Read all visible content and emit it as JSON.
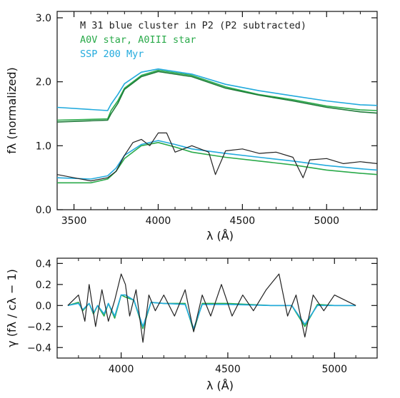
{
  "chart_data": [
    {
      "type": "line",
      "xlim": [
        3400,
        5300
      ],
      "ylim": [
        0,
        3.1
      ],
      "xticks": [
        3500,
        4000,
        4500,
        5000
      ],
      "yticks": [
        0.0,
        1.0,
        2.0,
        3.0
      ],
      "xtick_labels": [
        "3500",
        "4000",
        "4500",
        "5000"
      ],
      "ytick_labels": [
        "0.0",
        "1.0",
        "2.0",
        "3.0"
      ],
      "xlabel": "λ (Å)",
      "ylabel": "fλ (normalized)",
      "grid": false,
      "legend_position": "top-center",
      "legend": [
        {
          "label": "M 31 blue cluster in P2 (P2 subtracted)",
          "color": "#222222"
        },
        {
          "label": "A0V star, A0III star",
          "color": "#2aaa4a"
        },
        {
          "label": "SSP 200 Myr",
          "color": "#22aadd"
        }
      ],
      "series": [
        {
          "name": "A0V star, A0III star",
          "color": "#2aaa4a",
          "group": "upper",
          "x": [
            3400,
            3700,
            3720,
            3760,
            3800,
            3900,
            4000,
            4200,
            4400,
            4600,
            4800,
            5000,
            5200,
            5300
          ],
          "values": [
            1.4,
            1.42,
            1.55,
            1.7,
            1.9,
            2.1,
            2.18,
            2.1,
            1.92,
            1.8,
            1.72,
            1.62,
            1.56,
            1.55
          ]
        },
        {
          "name": "A0V star, A0III star",
          "color": "#1f7a3a",
          "group": "upper",
          "x": [
            3400,
            3700,
            3720,
            3760,
            3800,
            3900,
            4000,
            4200,
            4400,
            4600,
            4800,
            5000,
            5200,
            5300
          ],
          "values": [
            1.37,
            1.4,
            1.5,
            1.66,
            1.88,
            2.08,
            2.16,
            2.08,
            1.9,
            1.79,
            1.7,
            1.6,
            1.53,
            1.51
          ]
        },
        {
          "name": "SSP 200 Myr",
          "color": "#22aadd",
          "group": "upper",
          "x": [
            3400,
            3700,
            3720,
            3760,
            3800,
            3900,
            4000,
            4200,
            4400,
            4600,
            4800,
            5000,
            5200,
            5300
          ],
          "values": [
            1.6,
            1.55,
            1.65,
            1.8,
            1.97,
            2.15,
            2.2,
            2.12,
            1.96,
            1.86,
            1.78,
            1.7,
            1.64,
            1.63
          ]
        },
        {
          "name": "A0V star, A0III star",
          "color": "#2aaa4a",
          "group": "lower",
          "x": [
            3400,
            3600,
            3700,
            3750,
            3800,
            3900,
            4000,
            4100,
            4200,
            4400,
            4600,
            4800,
            5000,
            5200,
            5300
          ],
          "values": [
            0.42,
            0.42,
            0.48,
            0.6,
            0.8,
            1.0,
            1.05,
            0.98,
            0.9,
            0.82,
            0.76,
            0.7,
            0.62,
            0.57,
            0.55
          ]
        },
        {
          "name": "SSP 200 Myr",
          "color": "#22aadd",
          "group": "lower",
          "x": [
            3400,
            3600,
            3700,
            3750,
            3800,
            3900,
            4000,
            4100,
            4200,
            4400,
            4600,
            4800,
            5000,
            5200,
            5300
          ],
          "values": [
            0.5,
            0.48,
            0.53,
            0.65,
            0.85,
            1.02,
            1.08,
            1.02,
            0.95,
            0.88,
            0.82,
            0.76,
            0.69,
            0.64,
            0.62
          ]
        },
        {
          "name": "M 31 blue cluster in P2 (P2 subtracted)",
          "color": "#222222",
          "group": "cluster",
          "x": [
            3400,
            3500,
            3600,
            3700,
            3750,
            3800,
            3850,
            3900,
            3950,
            4000,
            4050,
            4100,
            4200,
            4300,
            4340,
            4400,
            4500,
            4600,
            4700,
            4800,
            4860,
            4900,
            5000,
            5100,
            5200,
            5300
          ],
          "values": [
            0.55,
            0.5,
            0.45,
            0.5,
            0.6,
            0.85,
            1.05,
            1.1,
            1.0,
            1.2,
            1.2,
            0.9,
            1.0,
            0.9,
            0.55,
            0.92,
            0.95,
            0.88,
            0.9,
            0.82,
            0.5,
            0.78,
            0.8,
            0.72,
            0.75,
            0.72
          ]
        }
      ]
    },
    {
      "type": "line",
      "xlim": [
        3700,
        5200
      ],
      "ylim": [
        -0.5,
        0.45
      ],
      "xticks": [
        4000,
        4500,
        5000
      ],
      "yticks": [
        -0.4,
        -0.2,
        0.0,
        0.2,
        0.4
      ],
      "xtick_labels": [
        "4000",
        "4500",
        "5000"
      ],
      "ytick_labels": [
        "−0.4",
        "−0.2",
        "0.0",
        "0.2",
        "0.4"
      ],
      "xlabel": "λ (Å)",
      "ylabel": "γ (fλ / cλ − 1)",
      "grid": false,
      "series": [
        {
          "color": "#2aaa4a",
          "x": [
            3750,
            3800,
            3820,
            3850,
            3870,
            3890,
            3920,
            3940,
            3970,
            4000,
            4020,
            4060,
            4102,
            4140,
            4200,
            4300,
            4340,
            4380,
            4500,
            4700,
            4800,
            4861,
            4920,
            5000,
            5100
          ],
          "values": [
            0.0,
            0.03,
            -0.05,
            0.02,
            -0.08,
            0.0,
            -0.1,
            0.02,
            -0.12,
            0.1,
            0.08,
            0.05,
            -0.22,
            0.03,
            0.02,
            0.02,
            -0.24,
            0.02,
            0.02,
            0.0,
            0.0,
            -0.2,
            0.01,
            0.0,
            0.0
          ]
        },
        {
          "color": "#22aadd",
          "x": [
            3750,
            3800,
            3820,
            3850,
            3870,
            3890,
            3920,
            3940,
            3970,
            4000,
            4020,
            4060,
            4102,
            4140,
            4200,
            4300,
            4340,
            4380,
            4500,
            4700,
            4800,
            4861,
            4920,
            5000,
            5100
          ],
          "values": [
            0.0,
            0.02,
            -0.04,
            0.02,
            -0.07,
            0.0,
            -0.08,
            0.02,
            -0.1,
            0.1,
            0.1,
            0.05,
            -0.2,
            0.03,
            0.02,
            0.01,
            -0.22,
            0.01,
            0.01,
            0.0,
            0.0,
            -0.18,
            0.0,
            0.0,
            0.0
          ]
        },
        {
          "color": "#222222",
          "x": [
            3750,
            3800,
            3830,
            3850,
            3880,
            3910,
            3940,
            3970,
            4000,
            4020,
            4040,
            4070,
            4102,
            4130,
            4160,
            4200,
            4250,
            4300,
            4340,
            4380,
            4420,
            4470,
            4520,
            4570,
            4620,
            4680,
            4740,
            4780,
            4820,
            4861,
            4900,
            4950,
            5000,
            5050,
            5100
          ],
          "values": [
            0.0,
            0.1,
            -0.15,
            0.2,
            -0.2,
            0.15,
            -0.15,
            0.05,
            0.3,
            0.2,
            -0.1,
            0.15,
            -0.35,
            0.1,
            -0.05,
            0.1,
            -0.1,
            0.15,
            -0.25,
            0.1,
            -0.1,
            0.2,
            -0.1,
            0.1,
            -0.05,
            0.15,
            0.3,
            -0.1,
            0.1,
            -0.3,
            0.1,
            -0.05,
            0.1,
            0.05,
            0.0
          ]
        }
      ]
    }
  ]
}
